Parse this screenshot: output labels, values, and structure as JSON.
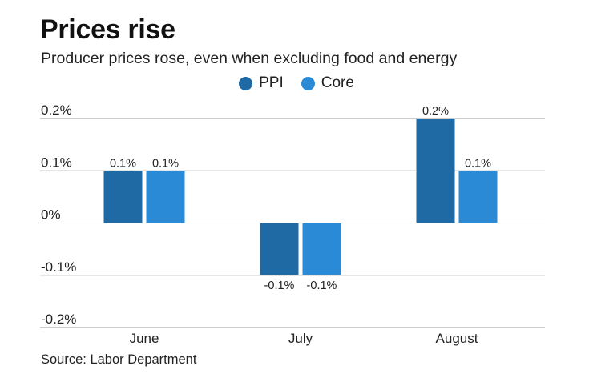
{
  "title": "Prices rise",
  "subtitle": "Producer prices rose, even when excluding food and energy",
  "source": "Source: Labor Department",
  "legend": [
    {
      "name": "PPI",
      "color": "#1f6aa5"
    },
    {
      "name": "Core",
      "color": "#2b8ad6"
    }
  ],
  "chart_data": {
    "type": "bar",
    "title": "Prices rise",
    "subtitle": "Producer prices rose, even when excluding food and energy",
    "categories": [
      "June",
      "July",
      "August"
    ],
    "series": [
      {
        "name": "PPI",
        "color": "#1f6aa5",
        "values": [
          0.1,
          -0.1,
          0.2
        ],
        "labels": [
          "0.1%",
          "-0.1%",
          "0.2%"
        ]
      },
      {
        "name": "Core",
        "color": "#2b8ad6",
        "values": [
          0.1,
          -0.1,
          0.1
        ],
        "labels": [
          "0.1%",
          "-0.1%",
          "0.1%"
        ]
      }
    ],
    "ylim": [
      -0.2,
      0.2
    ],
    "yticks": [
      0.2,
      0.1,
      0,
      -0.1,
      -0.2
    ],
    "ytick_labels": [
      "0.2%",
      "0.1%",
      "0%",
      "-0.1%",
      "-0.2%"
    ],
    "xlabel": "",
    "ylabel": "",
    "grid": true,
    "legend_position": "top-center"
  }
}
